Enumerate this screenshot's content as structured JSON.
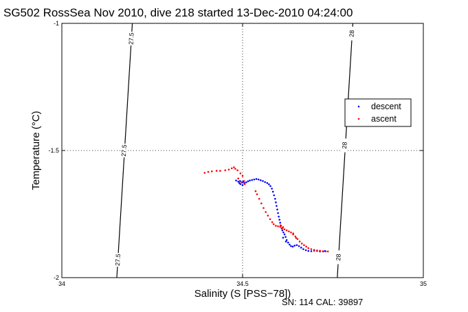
{
  "chart_data": {
    "type": "scatter",
    "title": "SG502 RossSea Nov 2010, dive 218 started 13-Dec-2010 04:24:00",
    "xlabel": "Salinity (S [PSS−78])",
    "ylabel": "Temperature (°C)",
    "xlim": [
      34,
      35
    ],
    "ylim": [
      -2,
      -1
    ],
    "xticks": [
      "34",
      "34.5",
      "35"
    ],
    "yticks": [
      "-1",
      "-1.5",
      "-2"
    ],
    "grid": "dotted at tick marks",
    "legend_position": "right",
    "footer": "SN: 114  CAL: 39897",
    "density_contours": [
      {
        "label": "27.5",
        "points": [
          [
            34.195,
            -1.0
          ],
          [
            34.152,
            -2.0
          ]
        ],
        "label_positions": [
          [
            34.192,
            -1.06
          ],
          [
            34.172,
            -1.5
          ],
          [
            34.155,
            -1.93
          ]
        ]
      },
      {
        "label": "28",
        "points": [
          [
            34.805,
            -1.0
          ],
          [
            34.762,
            -2.0
          ]
        ],
        "label_positions": [
          [
            34.802,
            -1.04
          ],
          [
            34.782,
            -1.48
          ],
          [
            34.765,
            -1.92
          ]
        ]
      }
    ],
    "series": [
      {
        "name": "descent",
        "color": "#0000ff",
        "points": [
          [
            34.482,
            -1.618
          ],
          [
            34.488,
            -1.622
          ],
          [
            34.493,
            -1.62
          ],
          [
            34.499,
            -1.626
          ],
          [
            34.502,
            -1.622
          ],
          [
            34.505,
            -1.628
          ],
          [
            34.51,
            -1.625
          ],
          [
            34.515,
            -1.621
          ],
          [
            34.52,
            -1.618
          ],
          [
            34.526,
            -1.616
          ],
          [
            34.532,
            -1.614
          ],
          [
            34.538,
            -1.612
          ],
          [
            34.544,
            -1.614
          ],
          [
            34.55,
            -1.617
          ],
          [
            34.556,
            -1.62
          ],
          [
            34.562,
            -1.624
          ],
          [
            34.568,
            -1.628
          ],
          [
            34.573,
            -1.633
          ],
          [
            34.577,
            -1.64
          ],
          [
            34.581,
            -1.65
          ],
          [
            34.584,
            -1.662
          ],
          [
            34.587,
            -1.676
          ],
          [
            34.59,
            -1.69
          ],
          [
            34.592,
            -1.704
          ],
          [
            34.594,
            -1.718
          ],
          [
            34.596,
            -1.732
          ],
          [
            34.598,
            -1.746
          ],
          [
            34.6,
            -1.76
          ],
          [
            34.602,
            -1.772
          ],
          [
            34.604,
            -1.784
          ],
          [
            34.606,
            -1.796
          ],
          [
            34.608,
            -1.806
          ],
          [
            34.61,
            -1.814
          ],
          [
            34.613,
            -1.822
          ],
          [
            34.616,
            -1.83
          ],
          [
            34.619,
            -1.84
          ],
          [
            34.622,
            -1.852
          ],
          [
            34.626,
            -1.862
          ],
          [
            34.63,
            -1.87
          ],
          [
            34.634,
            -1.876
          ],
          [
            34.639,
            -1.878
          ],
          [
            34.644,
            -1.874
          ],
          [
            34.65,
            -1.872
          ],
          [
            34.656,
            -1.876
          ],
          [
            34.662,
            -1.882
          ],
          [
            34.668,
            -1.888
          ],
          [
            34.675,
            -1.892
          ],
          [
            34.682,
            -1.895
          ],
          [
            34.69,
            -1.896
          ],
          [
            34.698,
            -1.894
          ],
          [
            34.706,
            -1.895
          ],
          [
            34.714,
            -1.897
          ],
          [
            34.723,
            -1.897
          ],
          [
            34.728,
            -1.895
          ],
          [
            34.494,
            -1.632
          ],
          [
            34.5,
            -1.636
          ],
          [
            34.491,
            -1.628
          ],
          [
            34.612,
            -1.843
          ],
          [
            34.62,
            -1.858
          ]
        ]
      },
      {
        "name": "ascent",
        "color": "#ff0000",
        "points": [
          [
            34.395,
            -1.588
          ],
          [
            34.405,
            -1.584
          ],
          [
            34.415,
            -1.582
          ],
          [
            34.428,
            -1.58
          ],
          [
            34.438,
            -1.58
          ],
          [
            34.452,
            -1.578
          ],
          [
            34.462,
            -1.575
          ],
          [
            34.47,
            -1.57
          ],
          [
            34.476,
            -1.566
          ],
          [
            34.48,
            -1.572
          ],
          [
            34.486,
            -1.578
          ],
          [
            34.494,
            -1.59
          ],
          [
            34.5,
            -1.6
          ],
          [
            34.504,
            -1.62
          ],
          [
            34.506,
            -1.632
          ],
          [
            34.497,
            -1.624
          ],
          [
            34.488,
            -1.61
          ],
          [
            34.536,
            -1.66
          ],
          [
            34.54,
            -1.672
          ],
          [
            34.546,
            -1.69
          ],
          [
            34.552,
            -1.708
          ],
          [
            34.558,
            -1.726
          ],
          [
            34.564,
            -1.742
          ],
          [
            34.57,
            -1.756
          ],
          [
            34.576,
            -1.77
          ],
          [
            34.582,
            -1.782
          ],
          [
            34.586,
            -1.79
          ],
          [
            34.592,
            -1.796
          ],
          [
            34.598,
            -1.798
          ],
          [
            34.604,
            -1.8
          ],
          [
            34.61,
            -1.806
          ],
          [
            34.616,
            -1.81
          ],
          [
            34.622,
            -1.814
          ],
          [
            34.628,
            -1.818
          ],
          [
            34.634,
            -1.822
          ],
          [
            34.64,
            -1.83
          ],
          [
            34.646,
            -1.838
          ],
          [
            34.652,
            -1.848
          ],
          [
            34.658,
            -1.858
          ],
          [
            34.664,
            -1.866
          ],
          [
            34.67,
            -1.872
          ],
          [
            34.676,
            -1.878
          ],
          [
            34.682,
            -1.884
          ],
          [
            34.69,
            -1.888
          ],
          [
            34.698,
            -1.891
          ],
          [
            34.706,
            -1.893
          ],
          [
            34.714,
            -1.894
          ],
          [
            34.722,
            -1.896
          ],
          [
            34.73,
            -1.897
          ],
          [
            34.736,
            -1.897
          ],
          [
            34.605,
            -1.794
          ],
          [
            34.612,
            -1.801
          ],
          [
            34.64,
            -1.826
          ],
          [
            34.648,
            -1.844
          ]
        ]
      }
    ]
  }
}
